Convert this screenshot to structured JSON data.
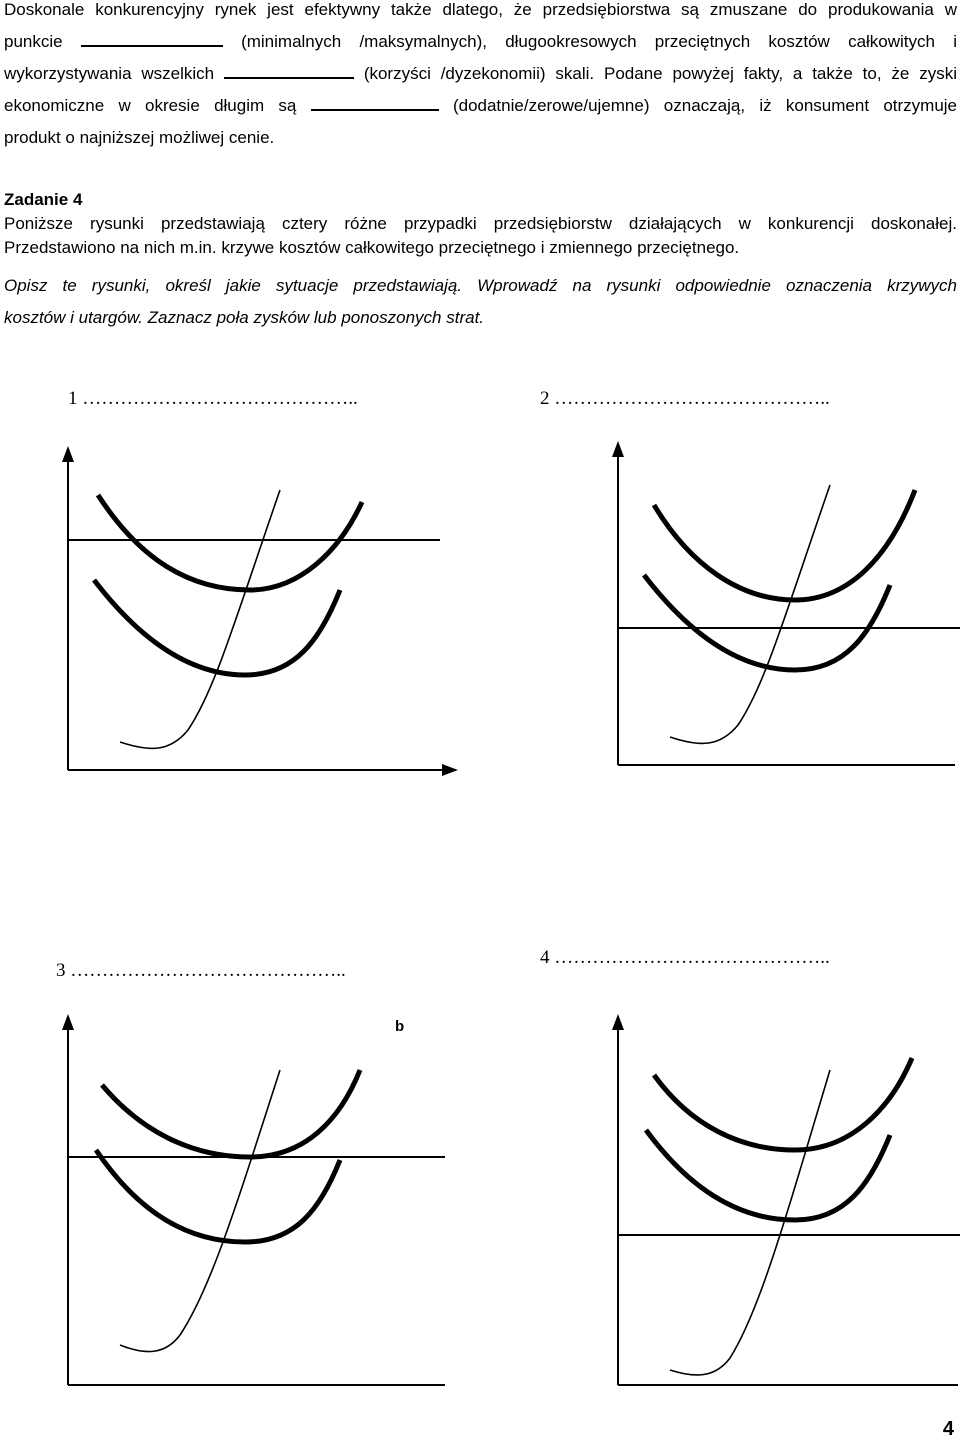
{
  "intro": {
    "l1": "Doskonale konkurencyjny rynek jest efektywny także dlatego, że przedsiębiorstwa są zmuszane do produkowania w",
    "l2a": "punkcie",
    "l2b": "(minimalnych /maksymalnych), długookresowych przeciętnych kosztów całkowitych i",
    "l3a": "wykorzystywania wszelkich",
    "l3b": "(korzyści /dyzekonomii) skali. Podane powyżej fakty, a także to, że zyski",
    "l4a": "ekonomiczne w okresie długim są",
    "l4b": "(dodatnie/zerowe/ujemne) oznaczają, iż konsument otrzymuje",
    "l5": "produkt o najniższej możliwej cenie."
  },
  "task": {
    "title": "Zadanie 4",
    "line1": "Poniższe rysunki przedstawiają cztery różne przypadki przedsiębiorstw działających w konkurencji doskonałej.",
    "line2": "Przedstawiono na nich m.in. krzywe kosztów całkowitego przeciętnego i zmiennego przeciętnego.",
    "instr1": "Opisz te rysunki, określ jakie sytuacje przedstawiają. Wprowadź na rysunki odpowiednie oznaczenia krzywych",
    "instr2": "kosztów i utargów. Zaznacz poła zysków lub ponoszonych strat."
  },
  "figures": [
    {
      "label": "1 ……………………………………..",
      "price_level": "above_atc_min"
    },
    {
      "label": "2 ……………………………………..",
      "price_level": "between_avc_and_atc_min"
    },
    {
      "label": "3 ……………………………………..",
      "mark": "b",
      "price_level": "equal_atc_min"
    },
    {
      "label": "4 ……………………………………..",
      "price_level": "below_avc_min"
    }
  ],
  "page_number": "4"
}
